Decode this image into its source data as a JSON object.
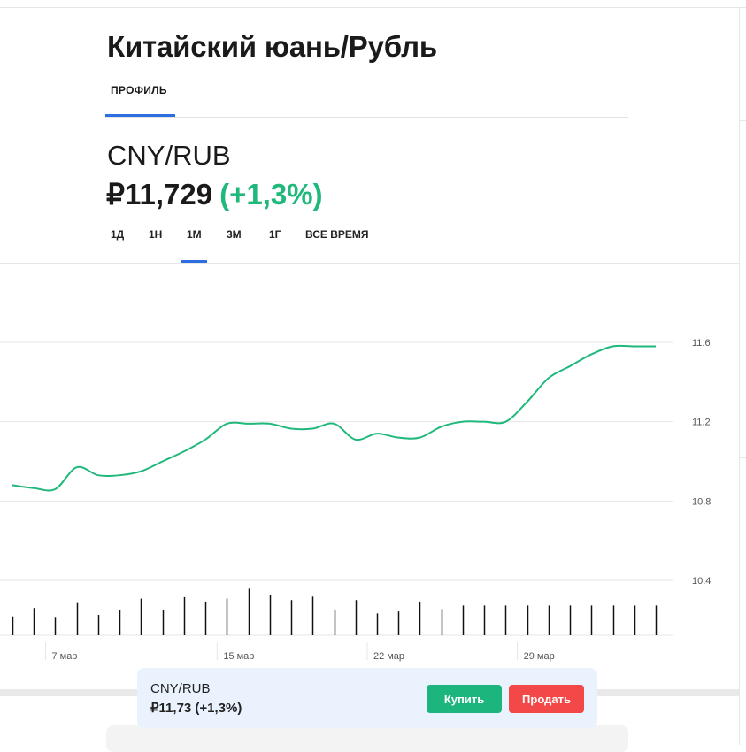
{
  "header": {
    "title": "Китайский юань/Рубль",
    "tabs": [
      {
        "label": "ПРОФИЛЬ",
        "active": true
      }
    ]
  },
  "quote": {
    "ticker": "CNY/RUB",
    "price": "₽11,729",
    "change": "(+1,3%)"
  },
  "periods": [
    {
      "label": "1Д",
      "active": false
    },
    {
      "label": "1Н",
      "active": false
    },
    {
      "label": "1М",
      "active": true
    },
    {
      "label": "3М",
      "active": false
    },
    {
      "label": "1Г",
      "active": false
    },
    {
      "label": "ВСЕ ВРЕМЯ",
      "active": false
    }
  ],
  "chart_data": {
    "type": "line",
    "x": [
      5,
      6,
      7,
      8,
      9,
      10,
      11,
      12,
      13,
      14,
      15,
      16,
      17,
      18,
      19,
      20,
      21,
      22,
      23,
      24,
      25,
      26,
      27,
      28,
      29,
      30,
      31,
      32,
      33,
      34,
      35
    ],
    "y": [
      10.88,
      10.865,
      10.86,
      10.97,
      10.93,
      10.93,
      10.95,
      11.0,
      11.05,
      11.11,
      11.19,
      11.19,
      11.19,
      11.165,
      11.165,
      11.19,
      11.11,
      11.14,
      11.12,
      11.12,
      11.175,
      11.2,
      11.2,
      11.2,
      11.3,
      11.42,
      11.48,
      11.54,
      11.58,
      11.58,
      11.58
    ],
    "volume": [
      0.38,
      0.55,
      0.37,
      0.65,
      0.41,
      0.51,
      0.74,
      0.51,
      0.77,
      0.68,
      0.74,
      0.94,
      0.81,
      0.71,
      0.78,
      0.52,
      0.71,
      0.44,
      0.48,
      0.68,
      0.53,
      0.6,
      0.6,
      0.6,
      0.6,
      0.6,
      0.6,
      0.6,
      0.6,
      0.6,
      0.6
    ],
    "x_ticks": [
      "7 мар",
      "15 мар",
      "22 мар",
      "29 мар"
    ],
    "y_ticks": [
      "11.6",
      "11.2",
      "10.8",
      "10.4"
    ],
    "ylim": [
      10.4,
      11.6
    ],
    "line_color": "#21b87c",
    "grid": true
  },
  "trade_panel": {
    "ticker": "CNY/RUB",
    "price": "₽11,73 (+1,3%)",
    "buy_label": "Купить",
    "sell_label": "Продать",
    "buy_color": "#1bb57d",
    "sell_color": "#f24848"
  }
}
